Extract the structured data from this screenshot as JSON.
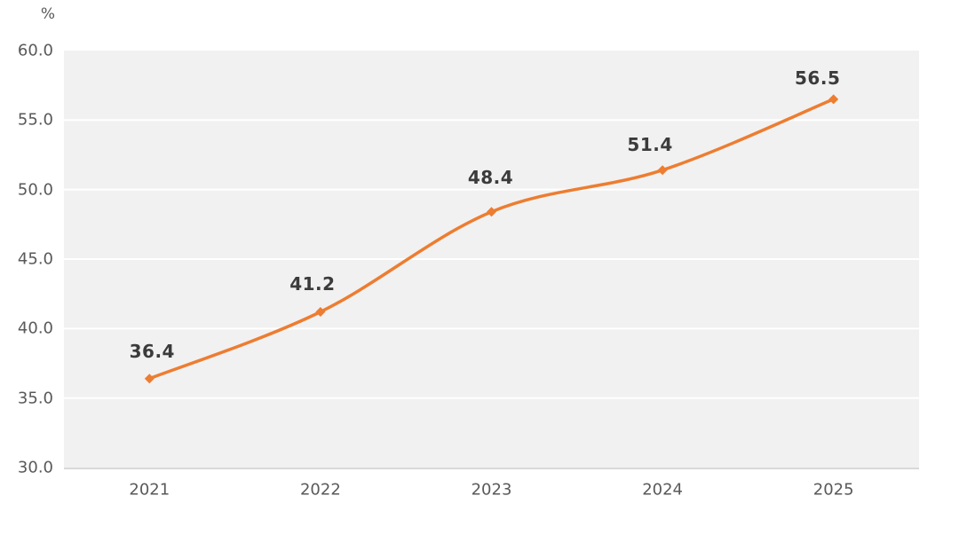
{
  "chart_data": {
    "type": "line",
    "title": "",
    "unit_label": "%",
    "categories": [
      "2021",
      "2022",
      "2023",
      "2024",
      "2025"
    ],
    "series": [
      {
        "name": "value",
        "values": [
          36.4,
          41.2,
          48.4,
          51.4,
          56.5
        ]
      }
    ],
    "data_labels": [
      "36.4",
      "41.2",
      "48.4",
      "51.4",
      "56.5"
    ],
    "ylim": [
      30.0,
      60.0
    ],
    "y_tick_step": 5.0,
    "y_tick_labels": [
      "30.0",
      "35.0",
      "40.0",
      "45.0",
      "50.0",
      "55.0",
      "60.0"
    ],
    "grid": "horizontal",
    "legend": "none",
    "smoothed_line": true,
    "marker_shape": "diamond",
    "colors": {
      "line": "#ED7D31",
      "marker": "#ED7D31",
      "plot_background": "#F1F1F1",
      "gridline": "#FFFFFF",
      "axis_line": "#D9D9D9",
      "tick_text": "#595959",
      "data_label_text": "#3B3B3B",
      "page_background": "#FFFFFF"
    }
  }
}
